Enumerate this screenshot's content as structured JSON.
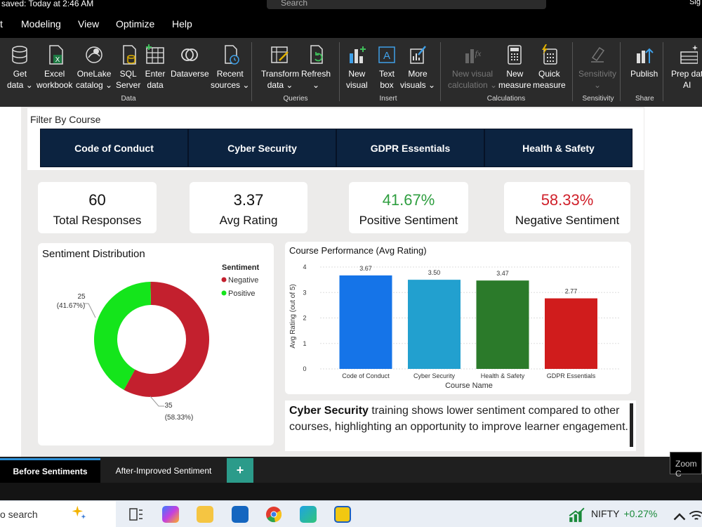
{
  "window": {
    "saved_status": "saved: Today at 2:46 AM",
    "search_placeholder": "Search",
    "signin_label": "Sig"
  },
  "menu": [
    "t",
    "Modeling",
    "View",
    "Optimize",
    "Help"
  ],
  "ribbon": {
    "buttons": [
      {
        "label1": "Get",
        "label2": "data ⌄",
        "icon": "database-icon"
      },
      {
        "label1": "Excel",
        "label2": "workbook",
        "icon": "excel-icon"
      },
      {
        "label1": "OneLake",
        "label2": "catalog ⌄",
        "icon": "onelake-icon"
      },
      {
        "label1": "SQL",
        "label2": "Server",
        "icon": "sql-server-icon"
      },
      {
        "label1": "Enter",
        "label2": "data",
        "icon": "table-icon"
      },
      {
        "label1": "Dataverse",
        "label2": "",
        "icon": "dataverse-icon"
      },
      {
        "label1": "Recent",
        "label2": "sources ⌄",
        "icon": "recent-sources-icon"
      },
      {
        "label1": "Transform",
        "label2": "data ⌄",
        "icon": "transform-icon"
      },
      {
        "label1": "Refresh",
        "label2": "⌄",
        "icon": "refresh-icon"
      },
      {
        "label1": "New",
        "label2": "visual",
        "icon": "new-visual-icon"
      },
      {
        "label1": "Text",
        "label2": "box",
        "icon": "text-box-icon"
      },
      {
        "label1": "More",
        "label2": "visuals ⌄",
        "icon": "more-visuals-icon"
      },
      {
        "label1": "New visual",
        "label2": "calculation ⌄",
        "icon": "visual-calculation-icon"
      },
      {
        "label1": "New",
        "label2": "measure",
        "icon": "calculator-icon"
      },
      {
        "label1": "Quick",
        "label2": "measure",
        "icon": "quick-measure-icon"
      },
      {
        "label1": "Sensitivity",
        "label2": "⌄",
        "icon": "sensitivity-icon"
      },
      {
        "label1": "Publish",
        "label2": "",
        "icon": "publish-icon"
      },
      {
        "label1": "Prep dat",
        "label2": "AI",
        "icon": "prep-data-icon"
      }
    ],
    "groups": [
      "Data",
      "Queries",
      "Insert",
      "Calculations",
      "Sensitivity",
      "Share"
    ]
  },
  "filter": {
    "title": "Filter By Course",
    "courses": [
      "Code of Conduct",
      "Cyber Security",
      "GDPR Essentials",
      "Health & Safety"
    ]
  },
  "kpis": [
    {
      "value": "60",
      "label": "Total Responses",
      "color": "#111111"
    },
    {
      "value": "3.37",
      "label": "Avg Rating",
      "color": "#111111"
    },
    {
      "value": "41.67%",
      "label": "Positive Sentiment",
      "color": "#2e9e3f"
    },
    {
      "value": "58.33%",
      "label": "Negative Sentiment",
      "color": "#d0202a"
    }
  ],
  "sentiment_card": {
    "title": "Sentiment Distribution",
    "legend_title": "Sentiment",
    "positive_label": "25",
    "positive_pct": "(41.67%)",
    "negative_label": "35",
    "negative_pct": "(58.33%)"
  },
  "course_card": {
    "title": "Course Performance (Avg Rating)"
  },
  "callout": {
    "bold": "Cyber Security",
    "text": " training shows lower sentiment compared to other courses, highlighting an opportunity to improve learner engagement."
  },
  "tabs": {
    "active": "Before Sentiments",
    "second": "After-Improved Sentiment",
    "add": "+"
  },
  "zoom_tip": "Zoom C",
  "taskbar": {
    "search": "o search",
    "ticker": "NIFTY",
    "ticker_change": "+0.27%"
  },
  "chart_data": [
    {
      "type": "pie",
      "title": "Sentiment Distribution",
      "legend_title": "Sentiment",
      "legend_position": "top-right",
      "slices": [
        {
          "name": "Negative",
          "value": 35,
          "percent": 58.33,
          "color": "#c3202e"
        },
        {
          "name": "Positive",
          "value": 25,
          "percent": 41.67,
          "color": "#14e51b"
        }
      ],
      "donut": true
    },
    {
      "type": "bar",
      "title": "Course Performance (Avg Rating)",
      "categories": [
        "Code of Conduct",
        "Cyber Security",
        "Health & Safety",
        "GDPR Essentials"
      ],
      "values": [
        3.67,
        3.5,
        3.47,
        2.77
      ],
      "value_labels": [
        "3.67",
        "3.50",
        "3.47",
        "2.77"
      ],
      "colors": [
        "#1574e8",
        "#22a0cf",
        "#2b7a2a",
        "#d01c1c"
      ],
      "xlabel": "Course Name",
      "ylabel": "Avg Rating (out of 5)",
      "ylim": [
        0,
        4
      ],
      "yticks": [
        "0",
        "1",
        "2",
        "3",
        "4"
      ],
      "grid": true
    }
  ]
}
